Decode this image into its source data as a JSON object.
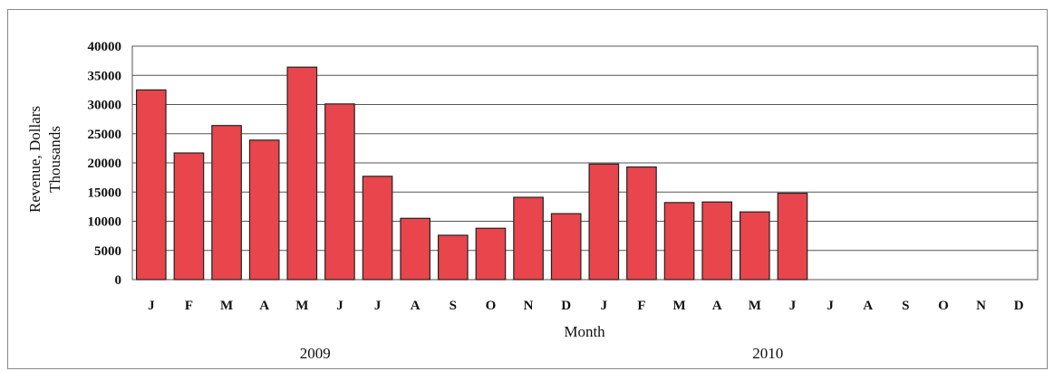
{
  "chart_data": {
    "type": "bar",
    "title": "",
    "xlabel": "Month",
    "ylabel": [
      "Revenue, Dollars",
      "Thousands"
    ],
    "year_labels": [
      "2009",
      "2010"
    ],
    "categories": [
      "J",
      "F",
      "M",
      "A",
      "M",
      "J",
      "J",
      "A",
      "S",
      "O",
      "N",
      "D",
      "J",
      "F",
      "M",
      "A",
      "M",
      "J",
      "J",
      "A",
      "S",
      "O",
      "N",
      "D"
    ],
    "values": [
      32500,
      21700,
      26400,
      23900,
      36400,
      30100,
      17700,
      10500,
      7600,
      8800,
      14100,
      11300,
      19800,
      19300,
      13200,
      13300,
      11600,
      14800,
      null,
      null,
      null,
      null,
      null,
      null
    ],
    "ylim": [
      0,
      40000
    ],
    "yticks": [
      0,
      5000,
      10000,
      15000,
      20000,
      25000,
      30000,
      35000,
      40000
    ],
    "grid": true,
    "bar_color": "#e8454c",
    "bar_edge_color": "#222222"
  }
}
